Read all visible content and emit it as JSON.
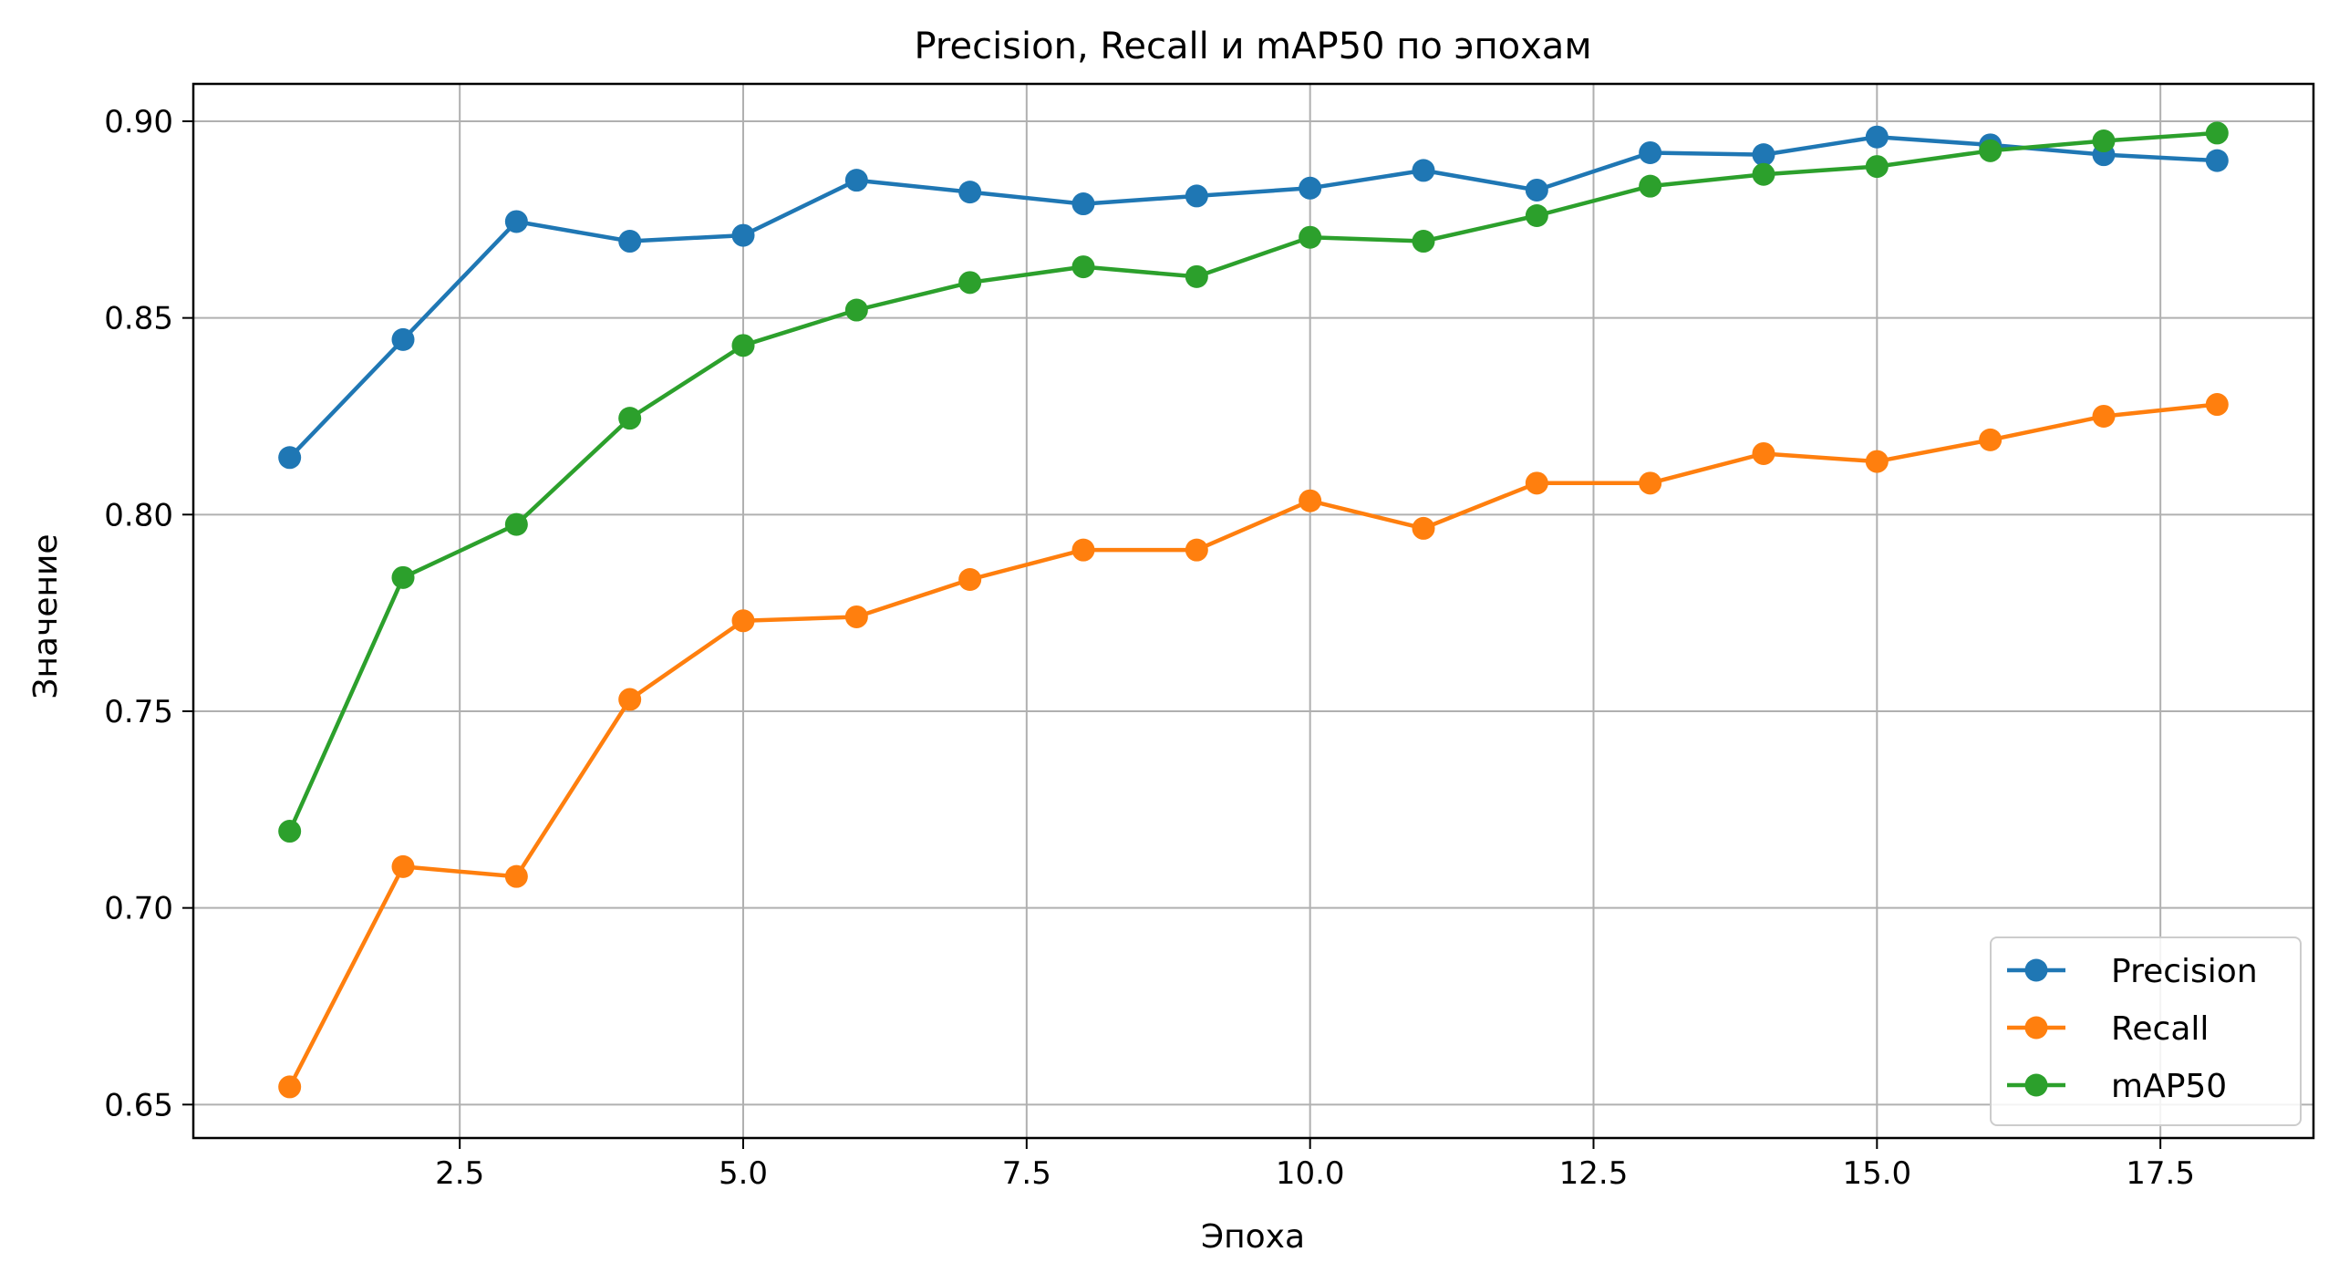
{
  "chart_data": {
    "type": "line",
    "title": "Precision, Recall и mAP50 по эпохам",
    "xlabel": "Эпоха",
    "ylabel": "Значение",
    "xlim": [
      0.15,
      18.85
    ],
    "ylim": [
      0.6415,
      0.9095
    ],
    "xticks": [
      2.5,
      5.0,
      7.5,
      10.0,
      12.5,
      15.0,
      17.5
    ],
    "xtick_labels": [
      "2.5",
      "5.0",
      "7.5",
      "10.0",
      "12.5",
      "15.0",
      "17.5"
    ],
    "yticks": [
      0.65,
      0.7,
      0.75,
      0.8,
      0.85,
      0.9
    ],
    "ytick_labels": [
      "0.65",
      "0.70",
      "0.75",
      "0.80",
      "0.85",
      "0.90"
    ],
    "grid": true,
    "legend_position": "lower-right",
    "x": [
      1,
      2,
      3,
      4,
      5,
      6,
      7,
      8,
      9,
      10,
      11,
      12,
      13,
      14,
      15,
      16,
      17,
      18
    ],
    "series": [
      {
        "name": "Precision",
        "color": "#1f77b4",
        "marker": "circle",
        "values": [
          0.8145,
          0.8445,
          0.8745,
          0.8695,
          0.871,
          0.885,
          0.882,
          0.879,
          0.881,
          0.883,
          0.8875,
          0.8825,
          0.892,
          0.8915,
          0.896,
          0.894,
          0.8915,
          0.89
        ]
      },
      {
        "name": "Recall",
        "color": "#ff7f0e",
        "marker": "circle",
        "values": [
          0.6545,
          0.7105,
          0.708,
          0.753,
          0.773,
          0.774,
          0.7835,
          0.791,
          0.791,
          0.8035,
          0.7965,
          0.808,
          0.808,
          0.8155,
          0.8135,
          0.819,
          0.825,
          0.828
        ]
      },
      {
        "name": "mAP50",
        "color": "#2ca02c",
        "marker": "circle",
        "values": [
          0.7195,
          0.784,
          0.7975,
          0.8245,
          0.843,
          0.852,
          0.859,
          0.863,
          0.8605,
          0.8705,
          0.8695,
          0.876,
          0.8835,
          0.8865,
          0.8885,
          0.8925,
          0.895,
          0.897
        ]
      }
    ]
  }
}
